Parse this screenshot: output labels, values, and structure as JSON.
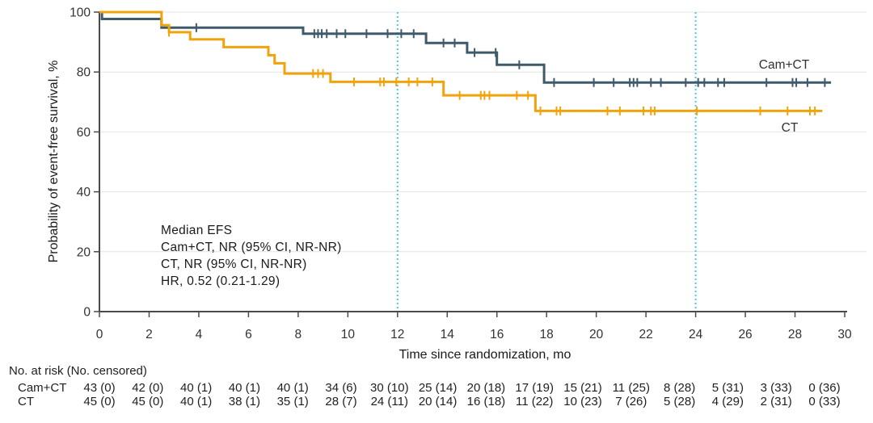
{
  "chart_data": {
    "type": "line",
    "subtype": "kaplan-meier-step",
    "title": "",
    "xlabel": "Time since randomization, mo",
    "ylabel": "Probability of event-free survival, %",
    "x_axis": {
      "ticks": [
        0,
        2,
        4,
        6,
        8,
        10,
        12,
        14,
        16,
        18,
        20,
        22,
        24,
        26,
        28,
        30
      ],
      "range": [
        0,
        30
      ],
      "grid": false
    },
    "y_axis": {
      "ticks": [
        0,
        20,
        40,
        60,
        80,
        100
      ],
      "range": [
        0,
        100
      ],
      "grid": true
    },
    "reference_lines_x": [
      12,
      24
    ],
    "reference_line_color": "#4fc6ea",
    "annotation": [
      "Median EFS",
      "Cam+CT, NR (95% CI, NR-NR)",
      "CT, NR (95% CI, NR-NR)",
      "HR, 0.52 (0.21-1.29)"
    ],
    "series": [
      {
        "name": "Cam+CT",
        "color": "#3e5a6b",
        "steps": [
          [
            0,
            100
          ],
          [
            0.1,
            97.7
          ],
          [
            2.5,
            94.8
          ],
          [
            8.2,
            92.8
          ],
          [
            13.15,
            89.7
          ],
          [
            14.8,
            86.5
          ],
          [
            16.0,
            82.4
          ],
          [
            17.9,
            76.5
          ]
        ],
        "end_time": 29.45,
        "censor_times": [
          3.9,
          8.65,
          8.8,
          8.95,
          9.15,
          9.55,
          9.9,
          10.75,
          11.6,
          12.15,
          12.65,
          13.85,
          14.3,
          15.1,
          15.95,
          16.9,
          18.3,
          19.9,
          20.7,
          21.35,
          21.5,
          21.65,
          22.2,
          22.6,
          23.6,
          24.1,
          24.35,
          24.9,
          25.15,
          26.85,
          27.9,
          28.05,
          28.5,
          29.2
        ]
      },
      {
        "name": "CT",
        "color": "#f0a30a",
        "steps": [
          [
            0,
            100
          ],
          [
            2.5,
            95.6
          ],
          [
            2.8,
            93.3
          ],
          [
            3.65,
            90.9
          ],
          [
            5.0,
            88.3
          ],
          [
            6.8,
            85.6
          ],
          [
            7.05,
            82.9
          ],
          [
            7.45,
            79.5
          ],
          [
            9.3,
            76.7
          ],
          [
            13.85,
            72.2
          ],
          [
            17.55,
            67.0
          ]
        ],
        "end_time": 29.1,
        "censor_times": [
          2.8,
          8.6,
          8.8,
          9.0,
          10.25,
          11.3,
          11.45,
          11.95,
          12.45,
          12.8,
          13.4,
          14.5,
          15.35,
          15.5,
          15.7,
          16.8,
          17.25,
          17.75,
          18.4,
          18.55,
          20.45,
          20.95,
          21.9,
          22.2,
          22.35,
          24.05,
          26.6,
          27.7,
          28.6,
          28.8
        ]
      }
    ],
    "at_risk": {
      "header": "No. at risk (No. censored)",
      "times": [
        0,
        2,
        4,
        6,
        8,
        10,
        12,
        14,
        16,
        18,
        20,
        22,
        24,
        26,
        28,
        30
      ],
      "rows": [
        {
          "label": "Cam+CT",
          "values": [
            "43 (0)",
            "42 (0)",
            "40 (1)",
            "40 (1)",
            "40 (1)",
            "34 (6)",
            "30 (10)",
            "25 (14)",
            "20 (18)",
            "17 (19)",
            "15 (21)",
            "11 (25)",
            "8 (28)",
            "5 (31)",
            "3 (33)",
            "0 (36)"
          ]
        },
        {
          "label": "CT",
          "values": [
            "45 (0)",
            "45 (0)",
            "40 (1)",
            "38 (1)",
            "35 (1)",
            "28 (7)",
            "24 (11)",
            "20 (14)",
            "16 (18)",
            "11 (22)",
            "10 (23)",
            "7 (26)",
            "5 (28)",
            "4 (29)",
            "2 (31)",
            "0 (33)"
          ]
        }
      ]
    }
  }
}
